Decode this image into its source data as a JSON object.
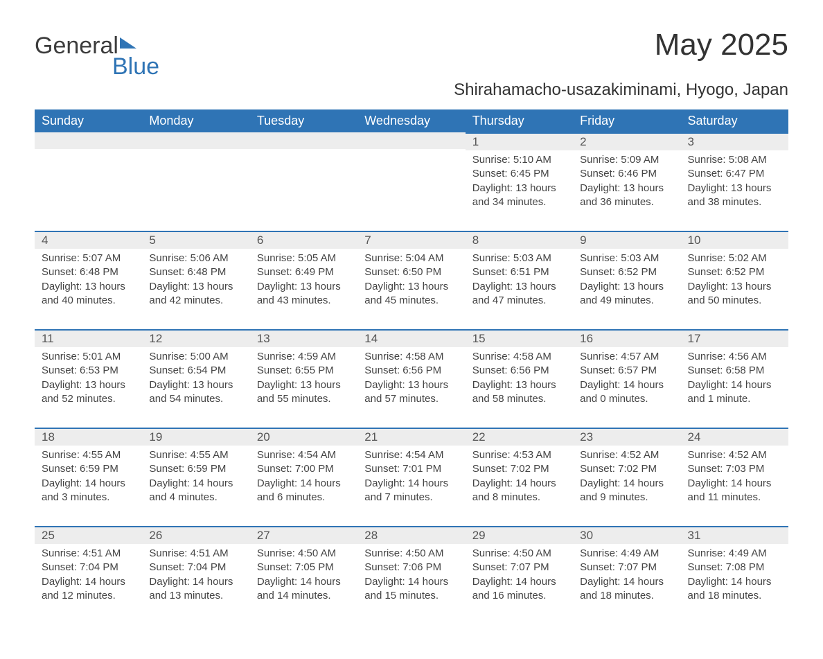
{
  "brand": {
    "part1": "General",
    "part2": "Blue"
  },
  "title": "May 2025",
  "location": "Shirahamacho-usazakiminami, Hyogo, Japan",
  "colors": {
    "header_bg": "#2f74b5",
    "header_text": "#ffffff",
    "daynum_bg": "#ededed",
    "daynum_text": "#555555",
    "border_top": "#2f74b5",
    "body_text": "#444444",
    "page_bg": "#ffffff"
  },
  "typography": {
    "title_fontsize": 44,
    "location_fontsize": 24,
    "dayheader_fontsize": 18,
    "daynum_fontsize": 17,
    "body_fontsize": 15
  },
  "calendar": {
    "type": "table",
    "columns": [
      "Sunday",
      "Monday",
      "Tuesday",
      "Wednesday",
      "Thursday",
      "Friday",
      "Saturday"
    ],
    "first_weekday_index": 4,
    "days": [
      {
        "n": "1",
        "sunrise": "Sunrise: 5:10 AM",
        "sunset": "Sunset: 6:45 PM",
        "daylight": "Daylight: 13 hours and 34 minutes."
      },
      {
        "n": "2",
        "sunrise": "Sunrise: 5:09 AM",
        "sunset": "Sunset: 6:46 PM",
        "daylight": "Daylight: 13 hours and 36 minutes."
      },
      {
        "n": "3",
        "sunrise": "Sunrise: 5:08 AM",
        "sunset": "Sunset: 6:47 PM",
        "daylight": "Daylight: 13 hours and 38 minutes."
      },
      {
        "n": "4",
        "sunrise": "Sunrise: 5:07 AM",
        "sunset": "Sunset: 6:48 PM",
        "daylight": "Daylight: 13 hours and 40 minutes."
      },
      {
        "n": "5",
        "sunrise": "Sunrise: 5:06 AM",
        "sunset": "Sunset: 6:48 PM",
        "daylight": "Daylight: 13 hours and 42 minutes."
      },
      {
        "n": "6",
        "sunrise": "Sunrise: 5:05 AM",
        "sunset": "Sunset: 6:49 PM",
        "daylight": "Daylight: 13 hours and 43 minutes."
      },
      {
        "n": "7",
        "sunrise": "Sunrise: 5:04 AM",
        "sunset": "Sunset: 6:50 PM",
        "daylight": "Daylight: 13 hours and 45 minutes."
      },
      {
        "n": "8",
        "sunrise": "Sunrise: 5:03 AM",
        "sunset": "Sunset: 6:51 PM",
        "daylight": "Daylight: 13 hours and 47 minutes."
      },
      {
        "n": "9",
        "sunrise": "Sunrise: 5:03 AM",
        "sunset": "Sunset: 6:52 PM",
        "daylight": "Daylight: 13 hours and 49 minutes."
      },
      {
        "n": "10",
        "sunrise": "Sunrise: 5:02 AM",
        "sunset": "Sunset: 6:52 PM",
        "daylight": "Daylight: 13 hours and 50 minutes."
      },
      {
        "n": "11",
        "sunrise": "Sunrise: 5:01 AM",
        "sunset": "Sunset: 6:53 PM",
        "daylight": "Daylight: 13 hours and 52 minutes."
      },
      {
        "n": "12",
        "sunrise": "Sunrise: 5:00 AM",
        "sunset": "Sunset: 6:54 PM",
        "daylight": "Daylight: 13 hours and 54 minutes."
      },
      {
        "n": "13",
        "sunrise": "Sunrise: 4:59 AM",
        "sunset": "Sunset: 6:55 PM",
        "daylight": "Daylight: 13 hours and 55 minutes."
      },
      {
        "n": "14",
        "sunrise": "Sunrise: 4:58 AM",
        "sunset": "Sunset: 6:56 PM",
        "daylight": "Daylight: 13 hours and 57 minutes."
      },
      {
        "n": "15",
        "sunrise": "Sunrise: 4:58 AM",
        "sunset": "Sunset: 6:56 PM",
        "daylight": "Daylight: 13 hours and 58 minutes."
      },
      {
        "n": "16",
        "sunrise": "Sunrise: 4:57 AM",
        "sunset": "Sunset: 6:57 PM",
        "daylight": "Daylight: 14 hours and 0 minutes."
      },
      {
        "n": "17",
        "sunrise": "Sunrise: 4:56 AM",
        "sunset": "Sunset: 6:58 PM",
        "daylight": "Daylight: 14 hours and 1 minute."
      },
      {
        "n": "18",
        "sunrise": "Sunrise: 4:55 AM",
        "sunset": "Sunset: 6:59 PM",
        "daylight": "Daylight: 14 hours and 3 minutes."
      },
      {
        "n": "19",
        "sunrise": "Sunrise: 4:55 AM",
        "sunset": "Sunset: 6:59 PM",
        "daylight": "Daylight: 14 hours and 4 minutes."
      },
      {
        "n": "20",
        "sunrise": "Sunrise: 4:54 AM",
        "sunset": "Sunset: 7:00 PM",
        "daylight": "Daylight: 14 hours and 6 minutes."
      },
      {
        "n": "21",
        "sunrise": "Sunrise: 4:54 AM",
        "sunset": "Sunset: 7:01 PM",
        "daylight": "Daylight: 14 hours and 7 minutes."
      },
      {
        "n": "22",
        "sunrise": "Sunrise: 4:53 AM",
        "sunset": "Sunset: 7:02 PM",
        "daylight": "Daylight: 14 hours and 8 minutes."
      },
      {
        "n": "23",
        "sunrise": "Sunrise: 4:52 AM",
        "sunset": "Sunset: 7:02 PM",
        "daylight": "Daylight: 14 hours and 9 minutes."
      },
      {
        "n": "24",
        "sunrise": "Sunrise: 4:52 AM",
        "sunset": "Sunset: 7:03 PM",
        "daylight": "Daylight: 14 hours and 11 minutes."
      },
      {
        "n": "25",
        "sunrise": "Sunrise: 4:51 AM",
        "sunset": "Sunset: 7:04 PM",
        "daylight": "Daylight: 14 hours and 12 minutes."
      },
      {
        "n": "26",
        "sunrise": "Sunrise: 4:51 AM",
        "sunset": "Sunset: 7:04 PM",
        "daylight": "Daylight: 14 hours and 13 minutes."
      },
      {
        "n": "27",
        "sunrise": "Sunrise: 4:50 AM",
        "sunset": "Sunset: 7:05 PM",
        "daylight": "Daylight: 14 hours and 14 minutes."
      },
      {
        "n": "28",
        "sunrise": "Sunrise: 4:50 AM",
        "sunset": "Sunset: 7:06 PM",
        "daylight": "Daylight: 14 hours and 15 minutes."
      },
      {
        "n": "29",
        "sunrise": "Sunrise: 4:50 AM",
        "sunset": "Sunset: 7:07 PM",
        "daylight": "Daylight: 14 hours and 16 minutes."
      },
      {
        "n": "30",
        "sunrise": "Sunrise: 4:49 AM",
        "sunset": "Sunset: 7:07 PM",
        "daylight": "Daylight: 14 hours and 18 minutes."
      },
      {
        "n": "31",
        "sunrise": "Sunrise: 4:49 AM",
        "sunset": "Sunset: 7:08 PM",
        "daylight": "Daylight: 14 hours and 18 minutes."
      }
    ]
  }
}
